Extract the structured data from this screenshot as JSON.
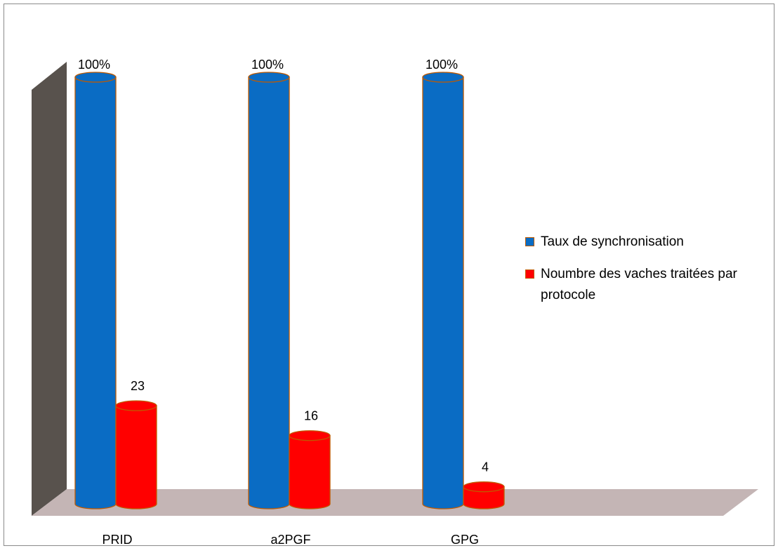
{
  "chart_data": {
    "type": "bar",
    "categories": [
      "PRID",
      "a2PGF",
      "GPG"
    ],
    "series": [
      {
        "name": "Taux de synchronisation",
        "values": [
          100,
          100,
          100
        ],
        "labels": [
          "100%",
          "100%",
          "100%"
        ],
        "color": "#0a6cc4"
      },
      {
        "name": "Noumbre des vaches traitées par protocole",
        "values": [
          23,
          16,
          4
        ],
        "labels": [
          "23",
          "16",
          "4"
        ],
        "color": "#ff0000"
      }
    ],
    "ylim": [
      0,
      100
    ],
    "grid": false,
    "legend": "right",
    "style": "3d-cylinder"
  }
}
